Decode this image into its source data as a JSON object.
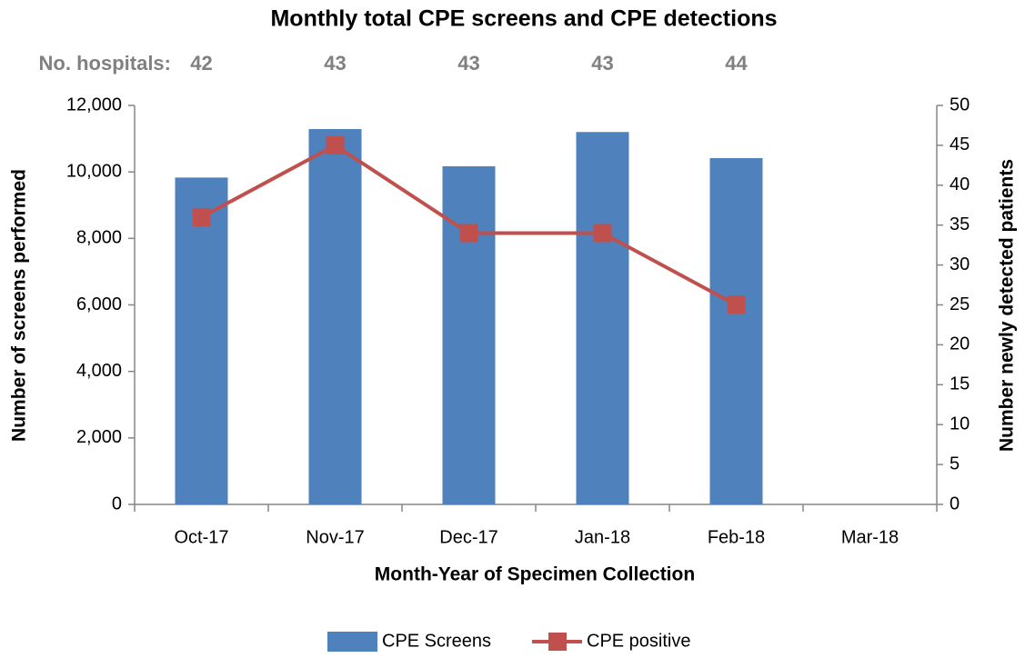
{
  "chart_data": {
    "type": "bar",
    "title": "Monthly total CPE screens and CPE detections",
    "hospitals": {
      "label": "No. hospitals:",
      "values": [
        42,
        43,
        43,
        43,
        44,
        null
      ]
    },
    "x_label": "Month-Year of Specimen Collection",
    "y_label": "Number of screens performed",
    "y2_label": "Number newly detected patients",
    "categories": [
      "Oct-17",
      "Nov-17",
      "Dec-17",
      "Jan-18",
      "Feb-18",
      "Mar-18"
    ],
    "series": [
      {
        "name": "CPE Screens",
        "type": "bar",
        "color": "#4f81bd",
        "values": [
          9830,
          11290,
          10170,
          11200,
          10415,
          null
        ]
      },
      {
        "name": "CPE positive",
        "type": "line",
        "axis": "y2",
        "color": "#c0504d",
        "values": [
          36,
          45,
          34,
          34,
          25,
          null
        ]
      }
    ],
    "ylim": [
      0,
      12000
    ],
    "yticks": [
      0,
      {
        "value": 2000,
        "label": "2,000"
      },
      {
        "value": 4000,
        "label": "4,000"
      },
      {
        "value": 6000,
        "label": "6,000"
      },
      {
        "value": 8000,
        "label": "8,000"
      },
      {
        "value": 10000,
        "label": "10,000"
      },
      {
        "value": 12000,
        "label": "12,000"
      }
    ],
    "y2lim": [
      0,
      50
    ],
    "y2ticks": [
      0,
      5,
      10,
      15,
      20,
      25,
      30,
      35,
      40,
      45,
      50
    ],
    "legend": "bottom"
  }
}
